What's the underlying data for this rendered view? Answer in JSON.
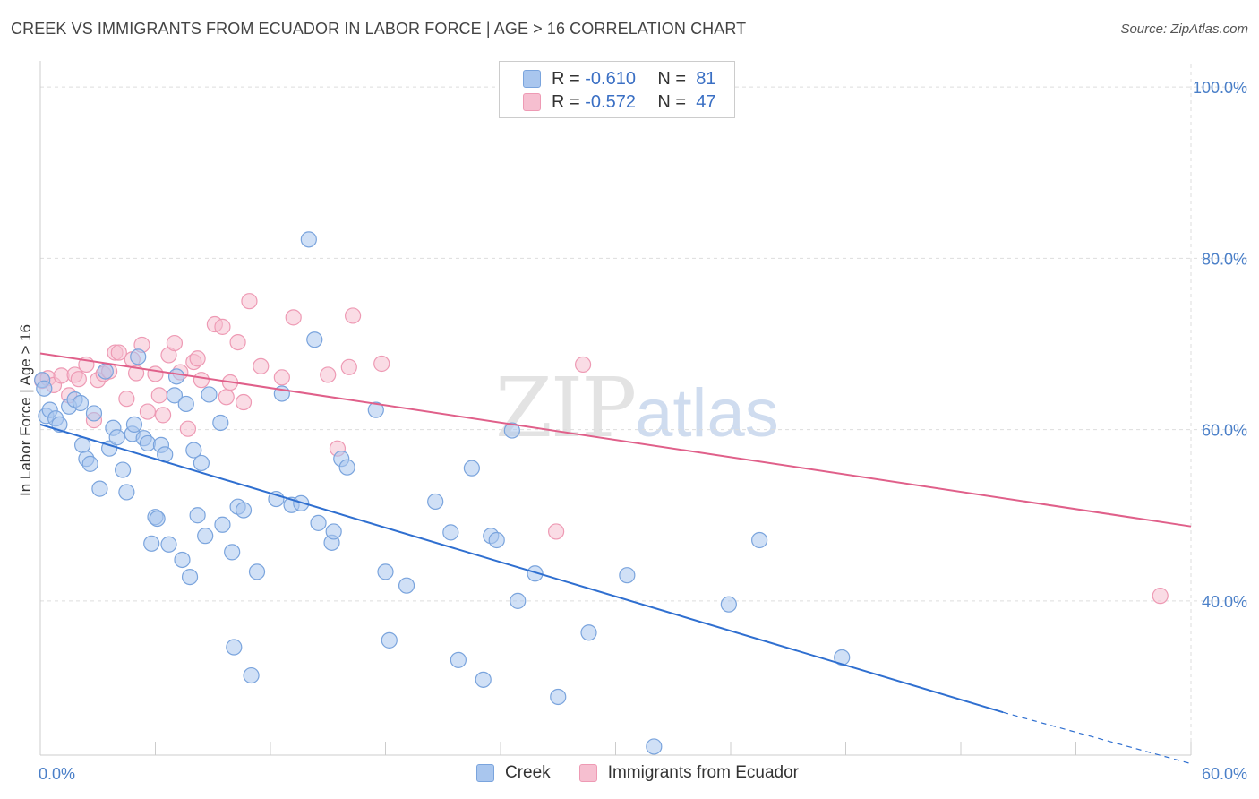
{
  "title": "CREEK VS IMMIGRANTS FROM ECUADOR IN LABOR FORCE | AGE > 16 CORRELATION CHART",
  "source": "Source: ZipAtlas.com",
  "watermark": {
    "zip": "ZIP",
    "atlas": "atlas"
  },
  "legend": {
    "r_label": "R =",
    "n_label": "N =",
    "creek": {
      "r": "-0.610",
      "n": "81"
    },
    "ecuador": {
      "r": "-0.572",
      "n": "47"
    }
  },
  "colors": {
    "creek_fill": "#a9c6ee",
    "creek_stroke": "#7aa4dd",
    "creek_line": "#2f6fd0",
    "ecuador_fill": "#f6bfd0",
    "ecuador_stroke": "#ee9ab4",
    "ecuador_line": "#e0608a",
    "tick_text": "#4a7fc8",
    "grid": "#dddddd"
  },
  "chart_data": {
    "type": "scatter",
    "title": "CREEK VS IMMIGRANTS FROM ECUADOR IN LABOR FORCE | AGE > 16 CORRELATION CHART",
    "xlabel": "",
    "ylabel": "In Labor Force | Age > 16",
    "xlim": [
      0,
      60
    ],
    "ylim": [
      22,
      102
    ],
    "x_tick_labels": [
      "0.0%",
      "60.0%"
    ],
    "y_ticks": [
      40,
      60,
      80,
      100
    ],
    "y_tick_labels": [
      "40.0%",
      "60.0%",
      "80.0%",
      "100.0%"
    ],
    "grid": true,
    "legend_position": "top-center",
    "series": [
      {
        "name": "Creek",
        "r": -0.61,
        "n": 81,
        "trend": {
          "x0": 0,
          "y0": 60.6,
          "x1": 50.2,
          "y1": 27.0,
          "dashed_to_x": 60,
          "dashed_to_y": 21.0
        },
        "points": [
          [
            0.1,
            65.8
          ],
          [
            0.3,
            61.6
          ],
          [
            0.5,
            62.3
          ],
          [
            0.8,
            61.3
          ],
          [
            1.0,
            60.6
          ],
          [
            1.5,
            62.7
          ],
          [
            1.8,
            63.5
          ],
          [
            2.1,
            63.1
          ],
          [
            2.2,
            58.2
          ],
          [
            2.4,
            56.6
          ],
          [
            2.6,
            56.0
          ],
          [
            2.8,
            61.9
          ],
          [
            3.1,
            53.1
          ],
          [
            3.4,
            66.8
          ],
          [
            3.6,
            57.8
          ],
          [
            3.8,
            60.2
          ],
          [
            4.0,
            59.1
          ],
          [
            4.3,
            55.3
          ],
          [
            4.5,
            52.7
          ],
          [
            4.8,
            59.5
          ],
          [
            4.9,
            60.6
          ],
          [
            5.1,
            68.5
          ],
          [
            5.4,
            59.0
          ],
          [
            5.6,
            58.4
          ],
          [
            5.8,
            46.7
          ],
          [
            6.0,
            49.8
          ],
          [
            6.1,
            49.6
          ],
          [
            6.3,
            58.2
          ],
          [
            6.5,
            57.1
          ],
          [
            6.7,
            46.6
          ],
          [
            7.0,
            64.0
          ],
          [
            7.1,
            66.2
          ],
          [
            7.4,
            44.8
          ],
          [
            7.6,
            63.0
          ],
          [
            7.8,
            42.8
          ],
          [
            8.0,
            57.6
          ],
          [
            8.2,
            50.0
          ],
          [
            8.4,
            56.1
          ],
          [
            8.6,
            47.6
          ],
          [
            8.8,
            64.1
          ],
          [
            9.4,
            60.8
          ],
          [
            9.5,
            48.9
          ],
          [
            10.0,
            45.7
          ],
          [
            10.1,
            34.6
          ],
          [
            10.3,
            51.0
          ],
          [
            10.6,
            50.6
          ],
          [
            11.0,
            31.3
          ],
          [
            11.3,
            43.4
          ],
          [
            12.3,
            51.9
          ],
          [
            12.6,
            64.2
          ],
          [
            13.1,
            51.2
          ],
          [
            13.6,
            51.4
          ],
          [
            14.0,
            82.2
          ],
          [
            14.3,
            70.5
          ],
          [
            14.5,
            49.1
          ],
          [
            15.2,
            46.8
          ],
          [
            15.3,
            48.1
          ],
          [
            15.7,
            56.6
          ],
          [
            16.0,
            55.6
          ],
          [
            17.5,
            62.3
          ],
          [
            18.0,
            43.4
          ],
          [
            18.2,
            35.4
          ],
          [
            19.1,
            41.8
          ],
          [
            20.6,
            51.6
          ],
          [
            21.4,
            48.0
          ],
          [
            21.8,
            33.1
          ],
          [
            22.5,
            55.5
          ],
          [
            23.1,
            30.8
          ],
          [
            23.5,
            47.6
          ],
          [
            23.8,
            47.1
          ],
          [
            24.6,
            59.9
          ],
          [
            24.9,
            40.0
          ],
          [
            25.8,
            43.2
          ],
          [
            27.0,
            28.8
          ],
          [
            28.6,
            36.3
          ],
          [
            30.6,
            43.0
          ],
          [
            32.0,
            23.0
          ],
          [
            35.9,
            39.6
          ],
          [
            37.5,
            47.1
          ],
          [
            41.8,
            33.4
          ],
          [
            0.2,
            64.8
          ]
        ]
      },
      {
        "name": "Immigrants from Ecuador",
        "r": -0.572,
        "n": 47,
        "trend": {
          "x0": 0,
          "y0": 68.9,
          "x1": 60,
          "y1": 48.7
        },
        "points": [
          [
            0.1,
            65.7
          ],
          [
            0.4,
            66.0
          ],
          [
            0.7,
            65.2
          ],
          [
            1.1,
            66.3
          ],
          [
            1.5,
            64.0
          ],
          [
            1.8,
            66.4
          ],
          [
            2.0,
            65.9
          ],
          [
            2.4,
            67.6
          ],
          [
            2.8,
            61.1
          ],
          [
            3.0,
            65.8
          ],
          [
            3.3,
            66.5
          ],
          [
            3.6,
            66.8
          ],
          [
            3.9,
            69.0
          ],
          [
            4.1,
            69.0
          ],
          [
            4.5,
            63.6
          ],
          [
            4.8,
            68.2
          ],
          [
            5.0,
            66.6
          ],
          [
            5.3,
            69.9
          ],
          [
            5.6,
            62.1
          ],
          [
            6.0,
            66.5
          ],
          [
            6.2,
            64.0
          ],
          [
            6.4,
            61.7
          ],
          [
            6.7,
            68.7
          ],
          [
            7.0,
            70.1
          ],
          [
            7.3,
            66.7
          ],
          [
            7.7,
            60.1
          ],
          [
            8.0,
            67.9
          ],
          [
            8.2,
            68.3
          ],
          [
            8.4,
            65.8
          ],
          [
            9.1,
            72.3
          ],
          [
            9.5,
            72.0
          ],
          [
            9.7,
            63.8
          ],
          [
            9.9,
            65.5
          ],
          [
            10.3,
            70.2
          ],
          [
            10.6,
            63.2
          ],
          [
            10.9,
            75.0
          ],
          [
            11.5,
            67.4
          ],
          [
            12.6,
            66.1
          ],
          [
            13.2,
            73.1
          ],
          [
            15.0,
            66.4
          ],
          [
            15.5,
            57.8
          ],
          [
            16.1,
            67.3
          ],
          [
            16.3,
            73.3
          ],
          [
            17.8,
            67.7
          ],
          [
            26.9,
            48.1
          ],
          [
            28.3,
            67.6
          ],
          [
            58.4,
            40.6
          ]
        ]
      }
    ]
  },
  "bottom_legend": {
    "creek": "Creek",
    "ecuador": "Immigrants from Ecuador"
  }
}
